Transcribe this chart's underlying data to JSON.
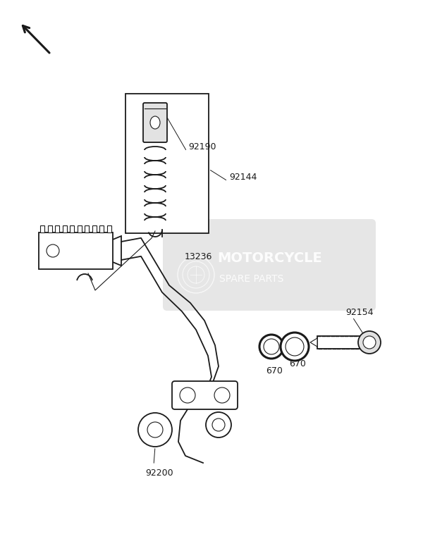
{
  "bg_color": "#ffffff",
  "watermark_text1": "MOTORCYCLE",
  "watermark_text2": "SPARE PARTS",
  "watermark_box_color": "#c8c8c8",
  "line_color": "#1a1a1a",
  "label_92190": "92190",
  "label_92144": "92144",
  "label_13236": "13236",
  "label_92154": "92154",
  "label_670a": "670",
  "label_670b": "670",
  "label_92200": "92200",
  "figsize": [
    6.0,
    7.75
  ],
  "dpi": 100
}
